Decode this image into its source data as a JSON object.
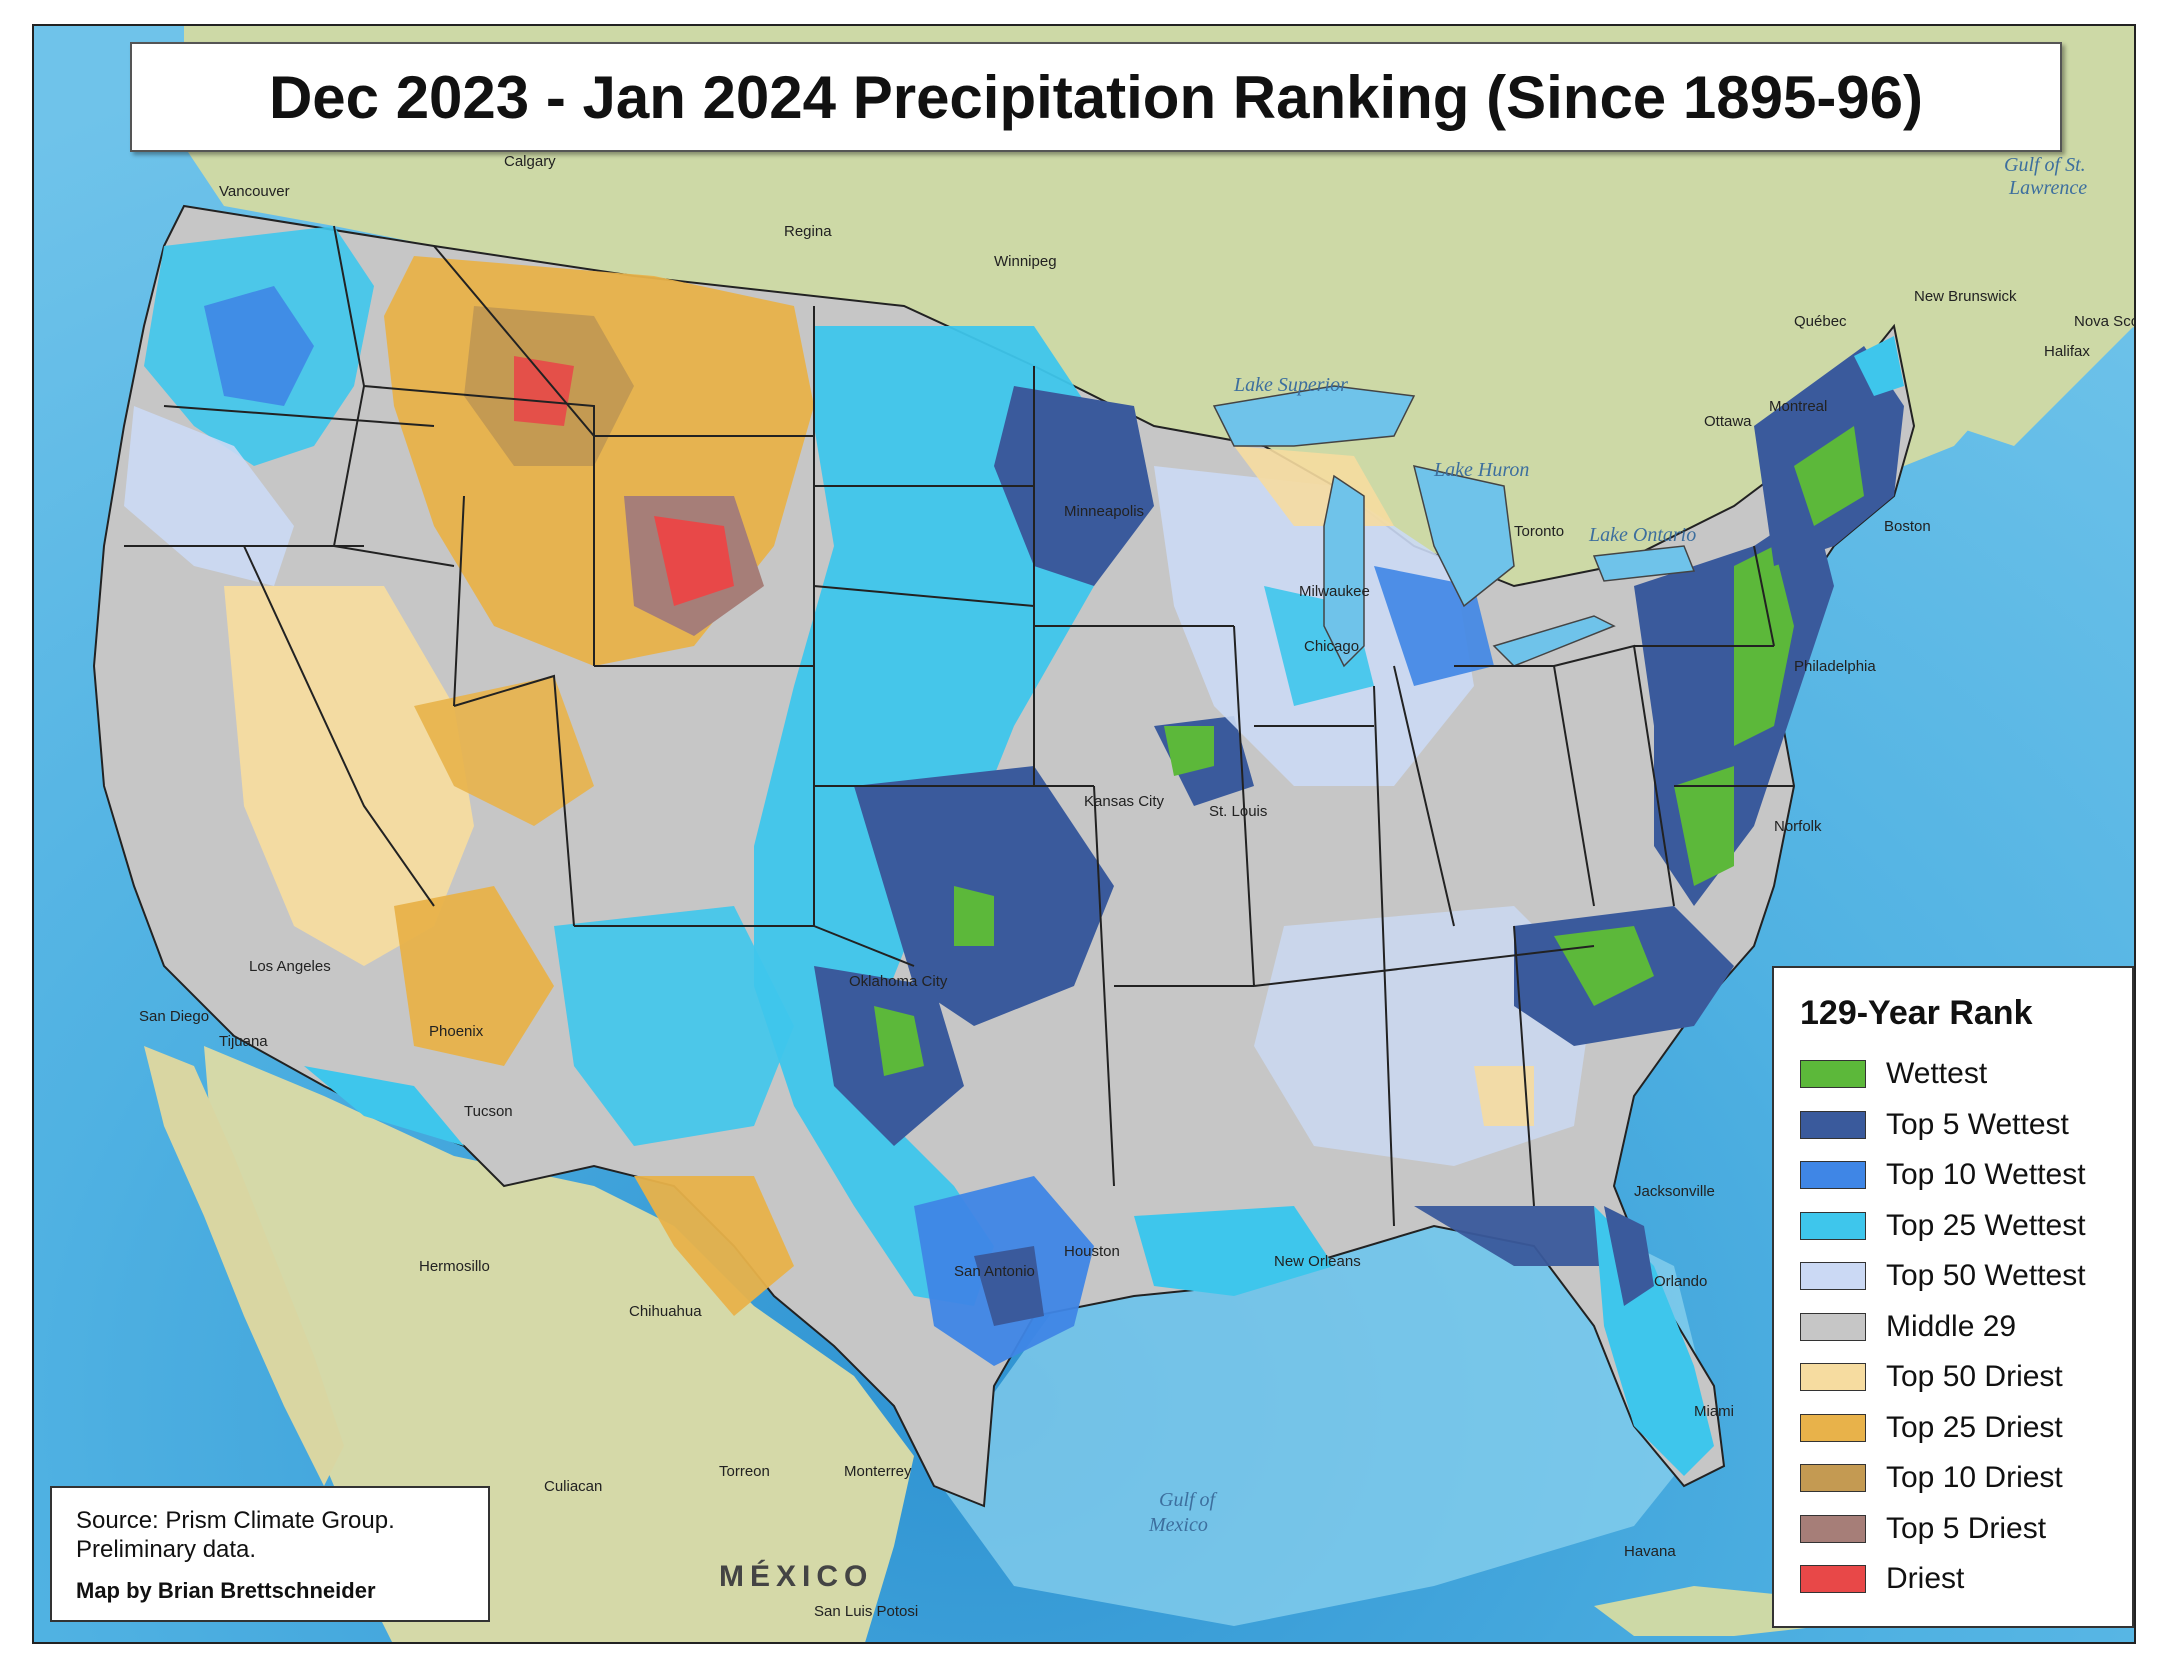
{
  "title": "Dec 2023 - Jan 2024 Precipitation Ranking (Since 1895-96)",
  "legend": {
    "title": "129-Year Rank",
    "items": [
      {
        "label": "Wettest",
        "color": "#5cb83a"
      },
      {
        "label": "Top 5 Wettest",
        "color": "#3a5a9c"
      },
      {
        "label": "Top 10 Wettest",
        "color": "#3f86e6"
      },
      {
        "label": "Top 25 Wettest",
        "color": "#3ec6ec"
      },
      {
        "label": "Top 50 Wettest",
        "color": "#cbd9f4"
      },
      {
        "label": "Middle 29",
        "color": "#c6c6c6"
      },
      {
        "label": "Top 50 Driest",
        "color": "#f6dca0"
      },
      {
        "label": "Top 25 Driest",
        "color": "#e8b24a"
      },
      {
        "label": "Top 10 Driest",
        "color": "#c49a52"
      },
      {
        "label": "Top 5 Driest",
        "color": "#a67e78"
      },
      {
        "label": "Driest",
        "color": "#e84848"
      }
    ]
  },
  "source": {
    "line1": "Source: Prism Climate Group.",
    "line2": "Preliminary data.",
    "credit": "Map by Brian Brettschneider"
  },
  "map_labels": {
    "cities": [
      "Vancouver",
      "Calgary",
      "Regina",
      "Winnipeg",
      "Ottawa",
      "Montreal",
      "Toronto",
      "Boston",
      "Philadelphia",
      "Norfolk",
      "Jacksonville",
      "Orlando",
      "Miami",
      "Havana",
      "Chicago",
      "Milwaukee",
      "Minneapolis",
      "St. Louis",
      "Kansas City",
      "Oklahoma City",
      "San Antonio",
      "Houston",
      "New Orleans",
      "Phoenix",
      "Tucson",
      "Los Angeles",
      "San Diego",
      "Tijuana",
      "Hermosillo",
      "Chihuahua",
      "Culiacan",
      "Torreon",
      "Monterrey",
      "San Luis Potosi"
    ],
    "water": [
      "Gulf of Mexico",
      "Gulf of St. Lawrence",
      "Lake Superior",
      "Lake Huron",
      "Lake Ontario"
    ],
    "regions": [
      "MÉXICO",
      "New Brunswick",
      "Nova Scotia",
      "Halifax",
      "Québec"
    ]
  }
}
